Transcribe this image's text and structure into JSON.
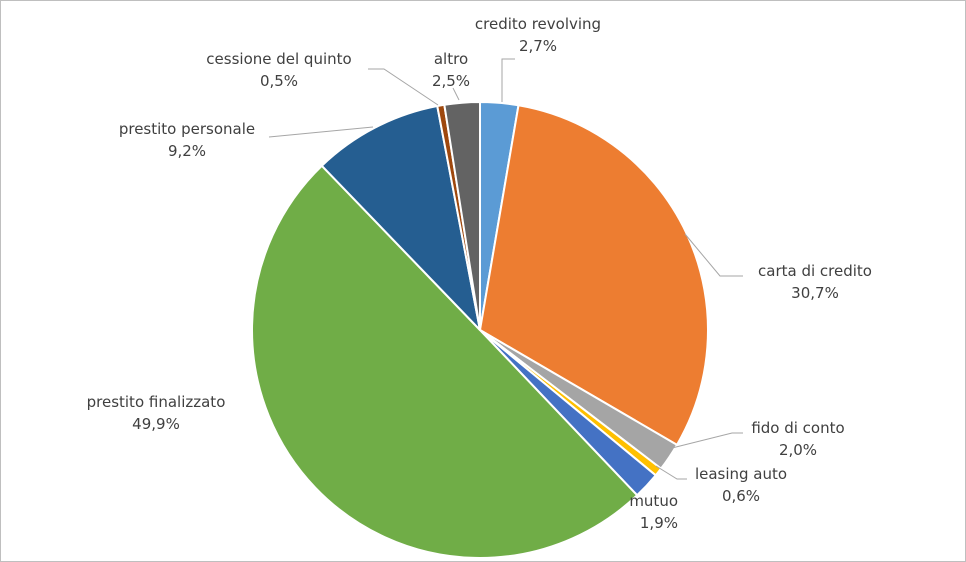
{
  "chart_data": {
    "type": "pie",
    "title": "",
    "legend": "none",
    "slices": [
      {
        "name": "credito revolving",
        "value": 2.7,
        "value_label": "2,7%",
        "color": "#5b9bd5"
      },
      {
        "name": "carta di credito",
        "value": 30.7,
        "value_label": "30,7%",
        "color": "#ed7d31"
      },
      {
        "name": "fido di conto",
        "value": 2.0,
        "value_label": "2,0%",
        "color": "#a5a5a5"
      },
      {
        "name": "leasing auto",
        "value": 0.6,
        "value_label": "0,6%",
        "color": "#ffc000"
      },
      {
        "name": "mutuo",
        "value": 1.9,
        "value_label": "1,9%",
        "color": "#4472c4"
      },
      {
        "name": "prestito finalizzato",
        "value": 49.9,
        "value_label": "49,9%",
        "color": "#70ad47"
      },
      {
        "name": "prestito personale",
        "value": 9.2,
        "value_label": "9,2%",
        "color": "#255e91"
      },
      {
        "name": "cessione del quinto",
        "value": 0.5,
        "value_label": "0,5%",
        "color": "#9e480e"
      },
      {
        "name": "altro",
        "value": 2.5,
        "value_label": "2,5%",
        "color": "#636363"
      }
    ]
  }
}
